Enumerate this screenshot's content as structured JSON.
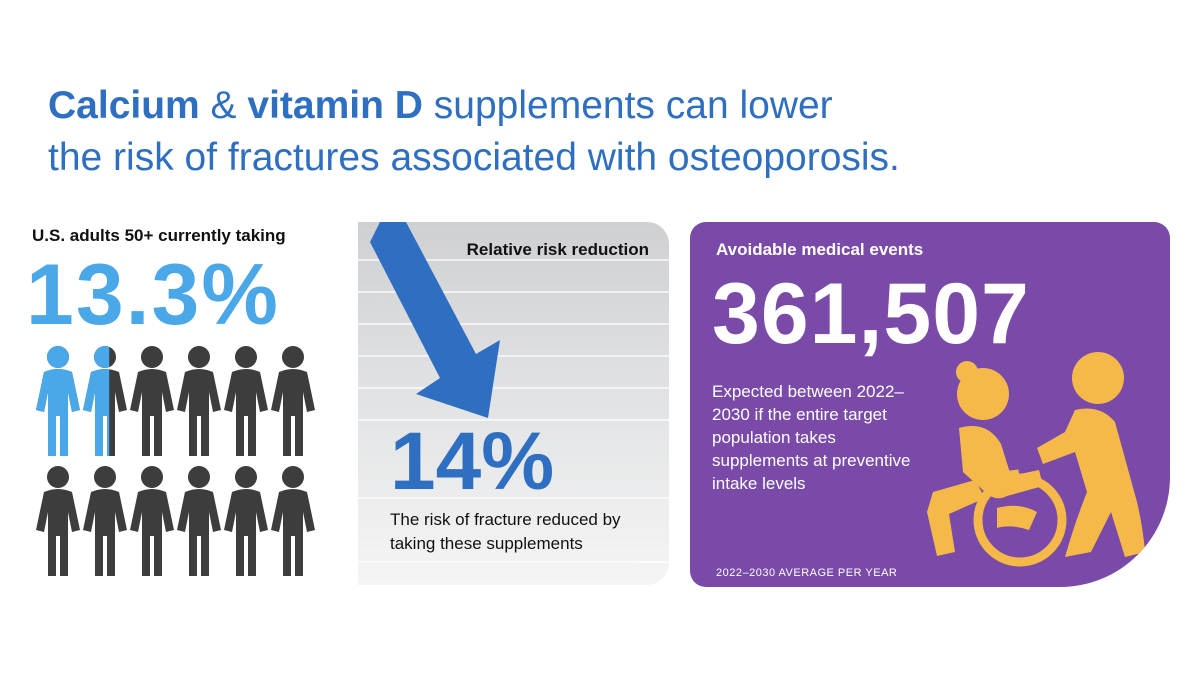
{
  "headline": {
    "line1_bold1": "Calcium",
    "line1_amp": " & ",
    "line1_bold2": "vitamin D",
    "line1_rest": " supplements can lower",
    "line2": "the risk of fractures associated with osteoporosis."
  },
  "adults": {
    "label": "U.S. adults 50+ currently taking",
    "percent": "13.3%",
    "share_fraction": 0.133,
    "highlight_color": "#4aa8e8",
    "base_color": "#3d3d3d"
  },
  "risk": {
    "title": "Relative risk reduction",
    "percent": "14%",
    "description": "The risk of fracture reduced by taking these supplements",
    "arrow_color": "#2f6fc1"
  },
  "events": {
    "title": "Avoidable medical events",
    "number": "361,507",
    "description": "Expected between 2022–2030 if the entire target population takes supplements at preventive intake levels",
    "footnote": "2022–2030 AVERAGE PER YEAR",
    "background_color": "#7a4aa8",
    "icon_color": "#f5b94a",
    "icon": "wheelchair-assistance-icon"
  },
  "colors": {
    "headline": "#2f6fc1"
  }
}
